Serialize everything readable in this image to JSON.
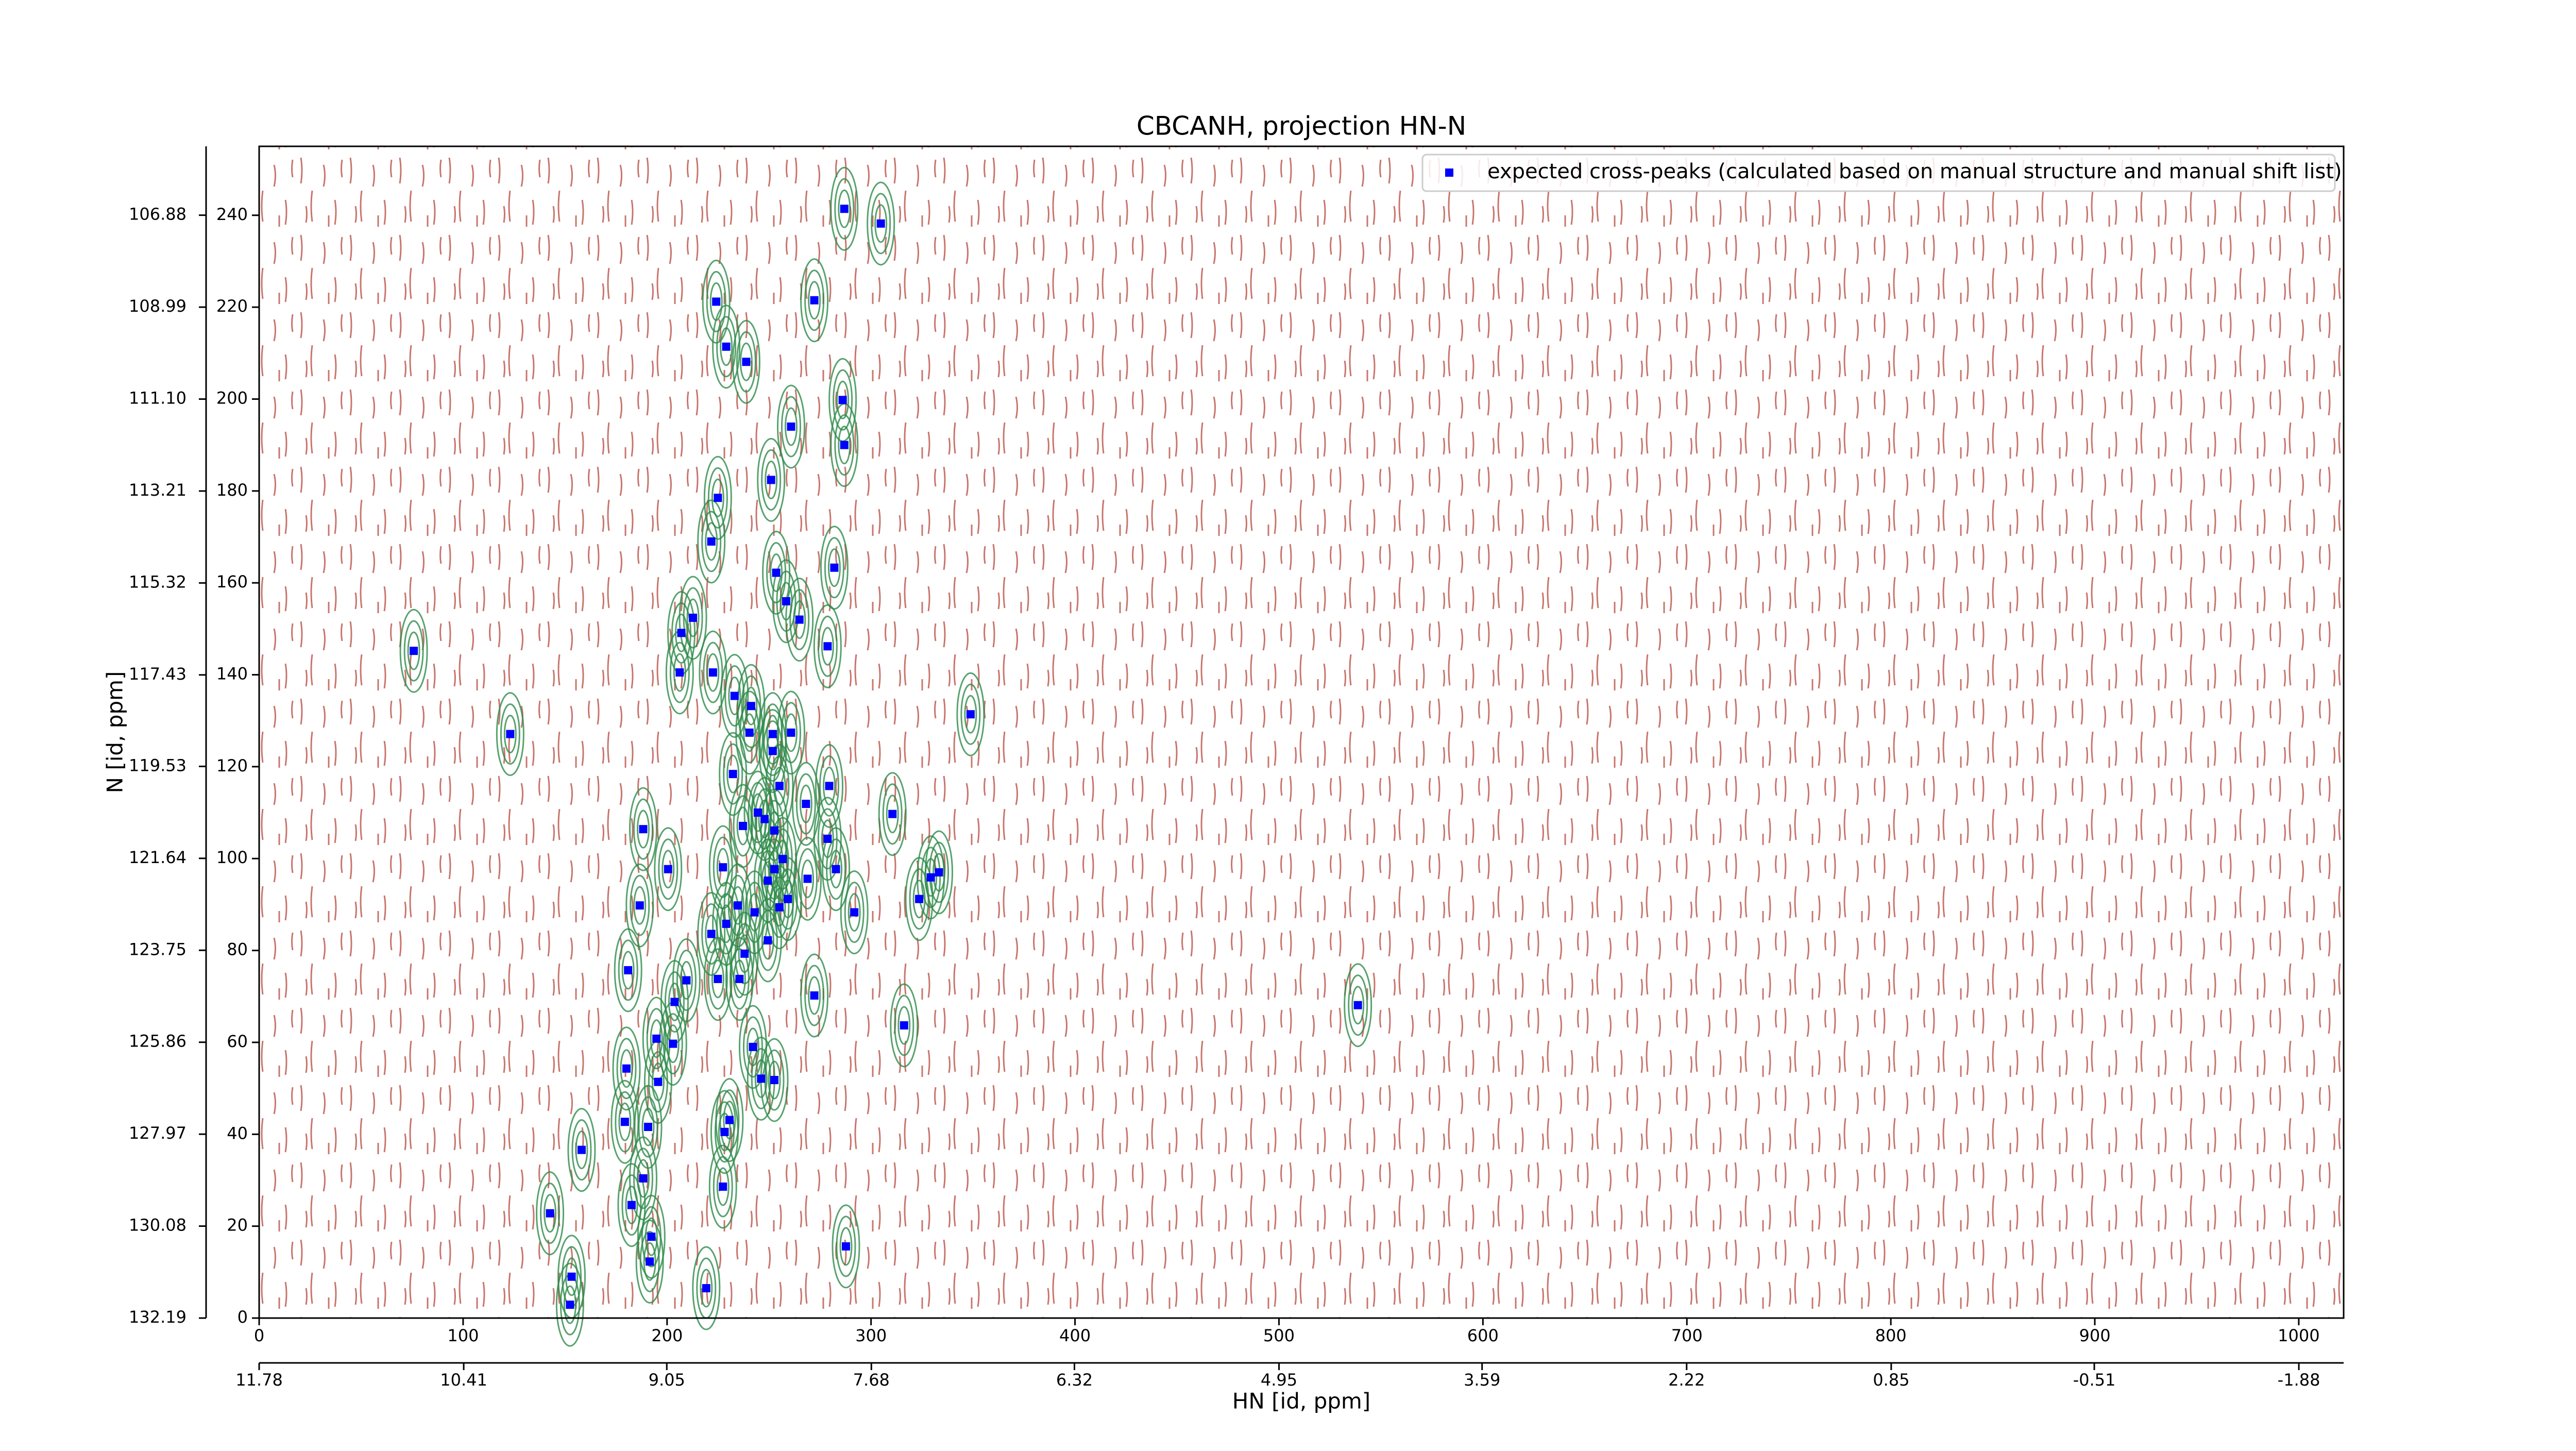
{
  "chart_data": {
    "type": "scatter",
    "title": "CBCANH, projection HN-N",
    "x_label": "HN [id, ppm]",
    "y_label": "N [id, ppm]",
    "xlim": [
      0,
      1022
    ],
    "ylim": [
      0,
      255
    ],
    "xticks": [
      0,
      100,
      200,
      300,
      400,
      500,
      600,
      700,
      800,
      900,
      1000
    ],
    "yticks": [
      0,
      20,
      40,
      60,
      80,
      100,
      120,
      140,
      160,
      180,
      200,
      220,
      240
    ],
    "x2lim": [
      11.78,
      -2.18
    ],
    "x2ticks": [
      11.78,
      10.41,
      9.05,
      7.68,
      6.32,
      4.95,
      3.59,
      2.22,
      0.85,
      -0.51,
      -1.88
    ],
    "y2lim": [
      132.19,
      105.3
    ],
    "y2ticks": [
      132.19,
      130.08,
      127.97,
      125.86,
      123.75,
      121.64,
      119.53,
      117.43,
      115.32,
      113.21,
      {
        "value": 111.1,
        "label": "111.10"
      },
      108.99,
      106.88
    ],
    "grid": false,
    "legend": "upper right",
    "x": [
      286.9,
      304.8,
      224.1,
      272.2,
      229.0,
      238.8,
      286.1,
      286.9,
      260.8,
      251.0,
      224.9,
      221.7,
      282.0,
      253.5,
      258.4,
      264.9,
      212.7,
      207.0,
      278.7,
      75.8,
      206.2,
      222.5,
      233.1,
      241.2,
      348.8,
      123.1,
      240.4,
      260.8,
      251.8,
      251.8,
      232.3,
      279.5,
      255.1,
      268.1,
      244.5,
      247.8,
      237.2,
      310.5,
      188.3,
      252.6,
      278.7,
      256.7,
      227.4,
      200.5,
      282.8,
      252.6,
      249.4,
      268.9,
      333.3,
      329.3,
      234.7,
      259.2,
      242.9,
      186.6,
      323.6,
      255.1,
      291.8,
      221.7,
      229.0,
      249.4,
      180.9,
      238.0,
      224.9,
      235.5,
      209.5,
      272.2,
      203.7,
      538.7,
      316.2,
      194.8,
      202.9,
      242.1,
      246.1,
      180.1,
      252.6,
      195.6,
      230.6,
      179.3,
      190.7,
      228.2,
      158.1,
      188.3,
      227.4,
      142.6,
      182.6,
      192.3,
      287.7,
      191.5,
      153.2,
      219.2,
      152.4
    ],
    "series": [
      {
        "name": "expected cross-peaks (calculated based on manual structure and manual shift list)",
        "color": "#0000ff",
        "values": [
          241.4,
          238.2,
          221.2,
          221.5,
          211.4,
          208.1,
          199.8,
          190.0,
          194.0,
          182.4,
          178.5,
          169.0,
          163.3,
          162.2,
          156.0,
          152.0,
          152.4,
          149.1,
          146.2,
          145.2,
          140.5,
          140.5,
          135.4,
          133.2,
          131.4,
          127.1,
          127.4,
          127.4,
          127.1,
          123.4,
          118.4,
          115.8,
          115.8,
          111.9,
          110.0,
          108.6,
          107.1,
          109.7,
          106.4,
          106.1,
          104.3,
          99.9,
          98.1,
          97.7,
          97.7,
          97.7,
          95.2,
          95.6,
          97.0,
          95.9,
          89.8,
          91.2,
          88.3,
          89.8,
          91.2,
          89.4,
          88.3,
          83.6,
          85.8,
          82.2,
          75.7,
          79.3,
          73.8,
          73.8,
          73.5,
          70.2,
          68.8,
          68.1,
          63.7,
          60.8,
          59.7,
          59.0,
          52.1,
          54.3,
          51.8,
          51.4,
          43.1,
          42.7,
          41.6,
          40.5,
          36.6,
          30.4,
          28.6,
          22.8,
          24.6,
          17.7,
          15.6,
          12.3,
          9.0,
          6.5,
          2.9
        ]
      }
    ]
  }
}
